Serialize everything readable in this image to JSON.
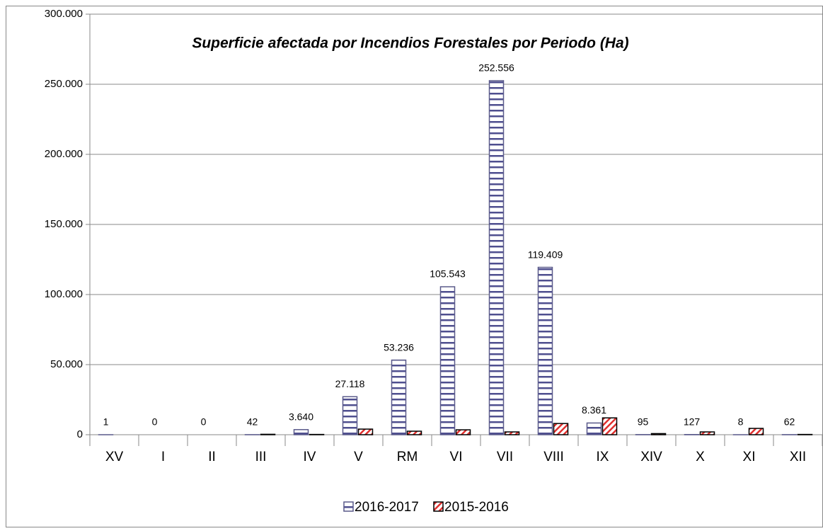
{
  "chart_data": {
    "type": "bar",
    "title": "Superficie afectada por Incendios Forestales por Periodo (Ha)",
    "categories": [
      "XV",
      "I",
      "II",
      "III",
      "IV",
      "V",
      "RM",
      "VI",
      "VII",
      "VIII",
      "IX",
      "XIV",
      "X",
      "XI",
      "XII"
    ],
    "series": [
      {
        "name": "2016-2017",
        "color": "#4f4f8f",
        "values": [
          1,
          0,
          0,
          42,
          3640,
          27118,
          53236,
          105543,
          252556,
          119409,
          8361,
          95,
          127,
          8,
          62
        ],
        "value_labels": [
          "1",
          "0",
          "0",
          "42",
          "3.640",
          "27.118",
          "53.236",
          "105.543",
          "252.556",
          "119.409",
          "8.361",
          "95",
          "127",
          "8",
          "62"
        ]
      },
      {
        "name": "2015-2016",
        "color": "#e0302e",
        "values": [
          0,
          0,
          0,
          300,
          200,
          4000,
          2500,
          3500,
          2000,
          8000,
          12000,
          800,
          2000,
          4500,
          200
        ]
      }
    ],
    "ylim": [
      0,
      300000
    ],
    "yticks": [
      0,
      {
        "value": 50000,
        "label": "50.000"
      },
      {
        "value": 100000,
        "label": "100.000"
      },
      {
        "value": 150000,
        "label": "150.000"
      },
      {
        "value": 200000,
        "label": "200.000"
      },
      {
        "value": 250000,
        "label": "250.000"
      },
      {
        "value": 300000,
        "label": "300.000"
      }
    ],
    "grid": true,
    "legend": "bottom"
  }
}
